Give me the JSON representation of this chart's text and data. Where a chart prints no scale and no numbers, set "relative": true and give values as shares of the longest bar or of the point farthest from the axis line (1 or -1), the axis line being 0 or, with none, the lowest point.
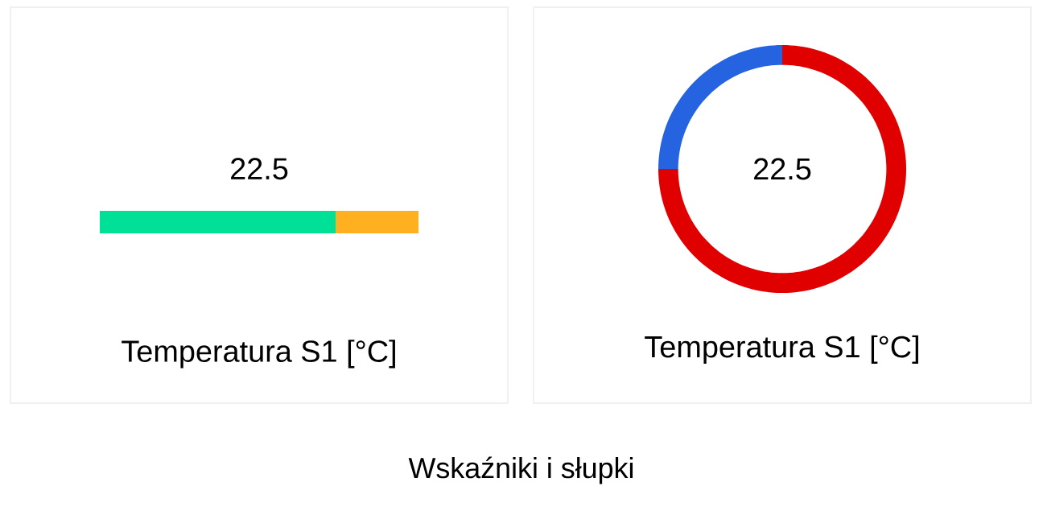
{
  "chart_data": [
    {
      "type": "bar",
      "orientation": "horizontal",
      "stacked": true,
      "relative": true,
      "title": "Temperatura S1 [°C]",
      "categories": [
        null
      ],
      "series": [
        {
          "color": "#00e096",
          "values": [
            0.74
          ]
        },
        {
          "color": "#ffb020",
          "values": [
            0.26
          ]
        }
      ],
      "annotations": [
        "22.5",
        "Wskaźniki i słupki"
      ]
    },
    {
      "type": "donut",
      "title": "Temperatura S1 [°C]",
      "categories": [
        null,
        null
      ],
      "values": [
        75,
        25
      ],
      "colors": [
        "#e10000",
        "#2563e0"
      ],
      "annotations": [
        "22.5"
      ]
    }
  ]
}
